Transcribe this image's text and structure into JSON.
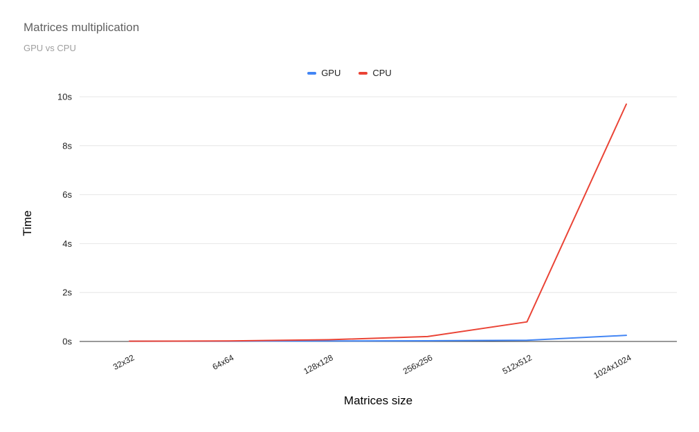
{
  "chart_data": {
    "type": "line",
    "title": "Matrices multiplication",
    "subtitle": "GPU vs CPU",
    "xlabel": "Matrices size",
    "ylabel": "Time",
    "categories": [
      "32x32",
      "64x64",
      "128x128",
      "256x256",
      "512x512",
      "1024x1024"
    ],
    "series": [
      {
        "name": "GPU",
        "color": "#4285f4",
        "values": [
          0.01,
          0.01,
          0.02,
          0.03,
          0.05,
          0.25
        ]
      },
      {
        "name": "CPU",
        "color": "#ea4335",
        "values": [
          0.01,
          0.02,
          0.07,
          0.2,
          0.8,
          9.7
        ]
      }
    ],
    "ylim": [
      0,
      10
    ],
    "yticks": [
      0,
      2,
      4,
      6,
      8,
      10
    ],
    "ytick_labels": [
      "0s",
      "2s",
      "4s",
      "6s",
      "8s",
      "10s"
    ],
    "legend_position": "top",
    "grid": true,
    "grid_color": "#e6e6e6",
    "axis_line_color": "#333333",
    "text_color": "#212121"
  }
}
